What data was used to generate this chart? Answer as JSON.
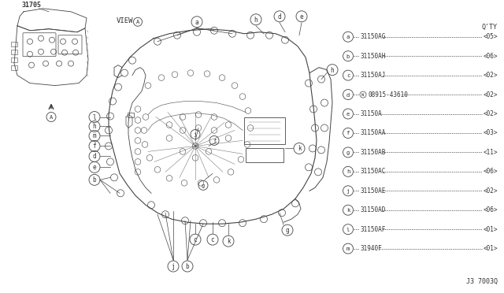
{
  "part_number_label": "31705",
  "view_label": "VIEW",
  "view_circle_label": "A",
  "diagram_id": "J3 7003Q",
  "bg_color": "#ffffff",
  "legend": [
    {
      "letter": "a",
      "part": "31150AG",
      "qty": "05"
    },
    {
      "letter": "b",
      "part": "31150AH",
      "qty": "06"
    },
    {
      "letter": "c",
      "part": "31150AJ",
      "qty": "02"
    },
    {
      "letter": "d",
      "part": "08915-43610",
      "qty": "02",
      "washer": true
    },
    {
      "letter": "e",
      "part": "31150A",
      "qty": "02"
    },
    {
      "letter": "f",
      "part": "31150AA",
      "qty": "03"
    },
    {
      "letter": "g",
      "part": "31150AB",
      "qty": "11"
    },
    {
      "letter": "h",
      "part": "31150AC",
      "qty": "06"
    },
    {
      "letter": "j",
      "part": "31150AE",
      "qty": "02"
    },
    {
      "letter": "k",
      "part": "31150AD",
      "qty": "06"
    },
    {
      "letter": "l",
      "part": "31150AF",
      "qty": "01"
    },
    {
      "letter": "m",
      "part": "31940F",
      "qty": "01"
    }
  ],
  "lc": "#444444",
  "tc": "#333333",
  "thin": 0.5,
  "med": 0.8,
  "thick": 1.0
}
